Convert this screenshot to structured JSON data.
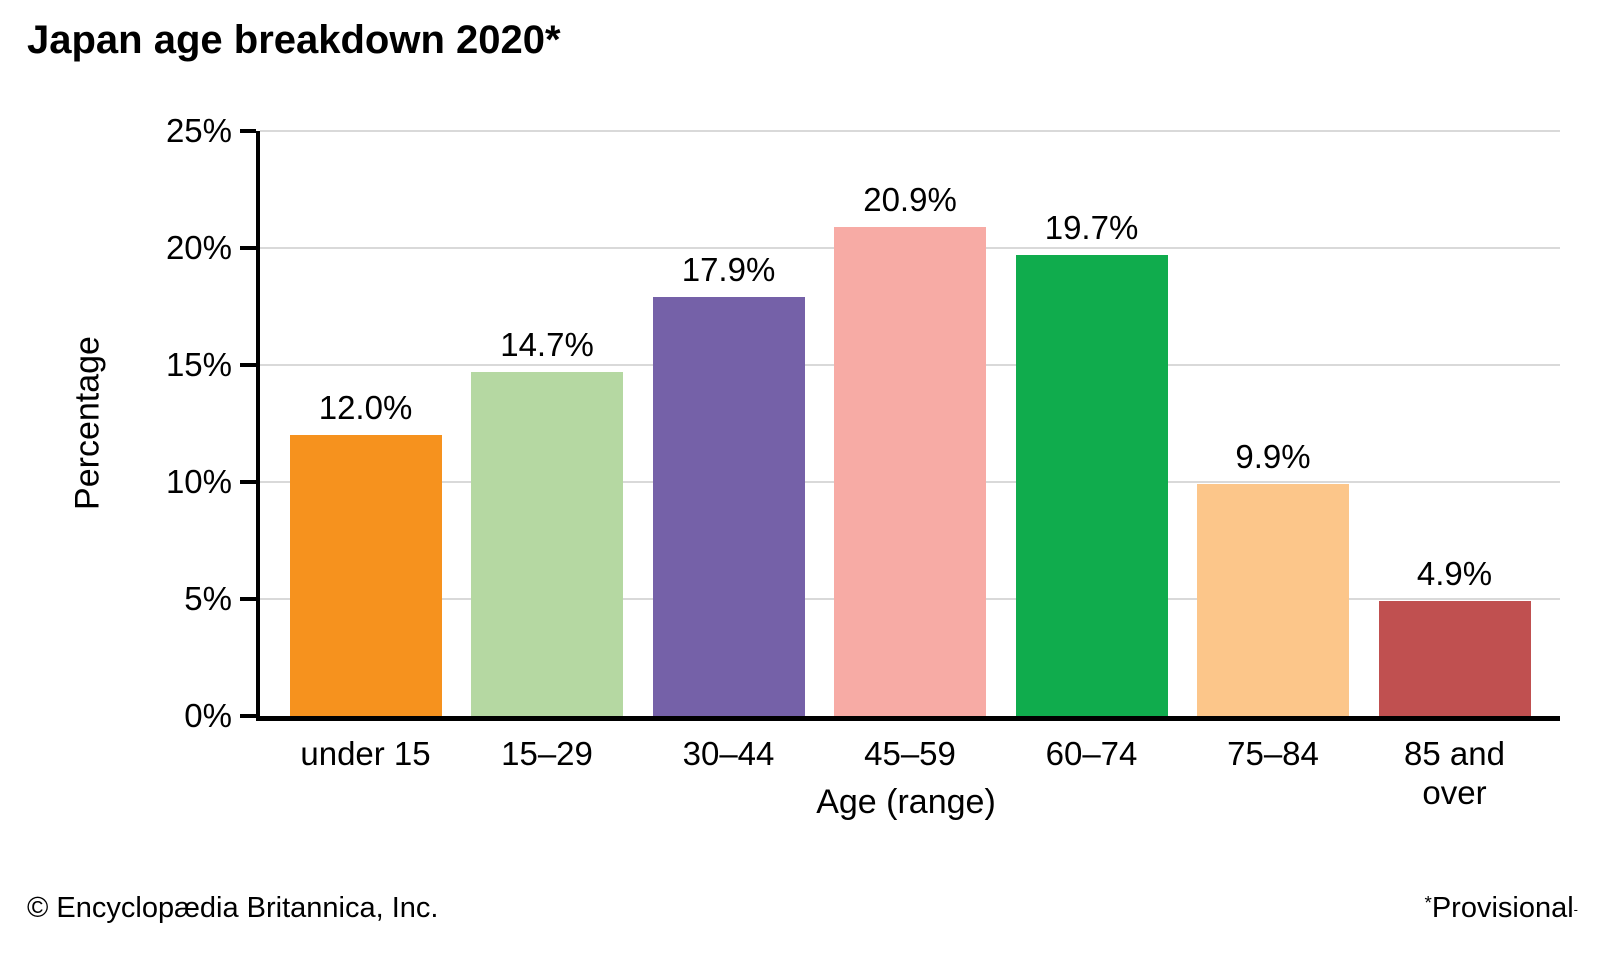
{
  "chart_data": {
    "type": "bar",
    "title": "Japan age breakdown 2020*",
    "categories": [
      "under 15",
      "15–29",
      "30–44",
      "45–59",
      "60–74",
      "75–84",
      "85 and\nover"
    ],
    "values": [
      12.0,
      14.7,
      17.9,
      20.9,
      19.7,
      9.9,
      4.9
    ],
    "bar_labels": [
      "12.0%",
      "14.7%",
      "17.9%",
      "20.9%",
      "19.7%",
      "9.9%",
      "4.9%"
    ],
    "bar_colors": [
      "#f6921e",
      "#b5d8a2",
      "#7561a8",
      "#f7aba5",
      "#10ac4d",
      "#fcc68a",
      "#c05050"
    ],
    "xlabel": "Age (range)",
    "ylabel": "Percentage",
    "ylim": [
      0,
      25
    ],
    "yticks": [
      0,
      5,
      10,
      15,
      20,
      25
    ],
    "ytick_labels": [
      "0%",
      "5%",
      "10%",
      "15%",
      "20%",
      "25%"
    ],
    "grid": true,
    "gridline_color": "#d9d9d9",
    "axis_color": "#000000",
    "legend": false
  },
  "footer": {
    "copyright": "© Encyclopædia Britannica, Inc.",
    "footnote_marker": "*",
    "footnote": "Provisional",
    "footnote_suffix": "-"
  }
}
